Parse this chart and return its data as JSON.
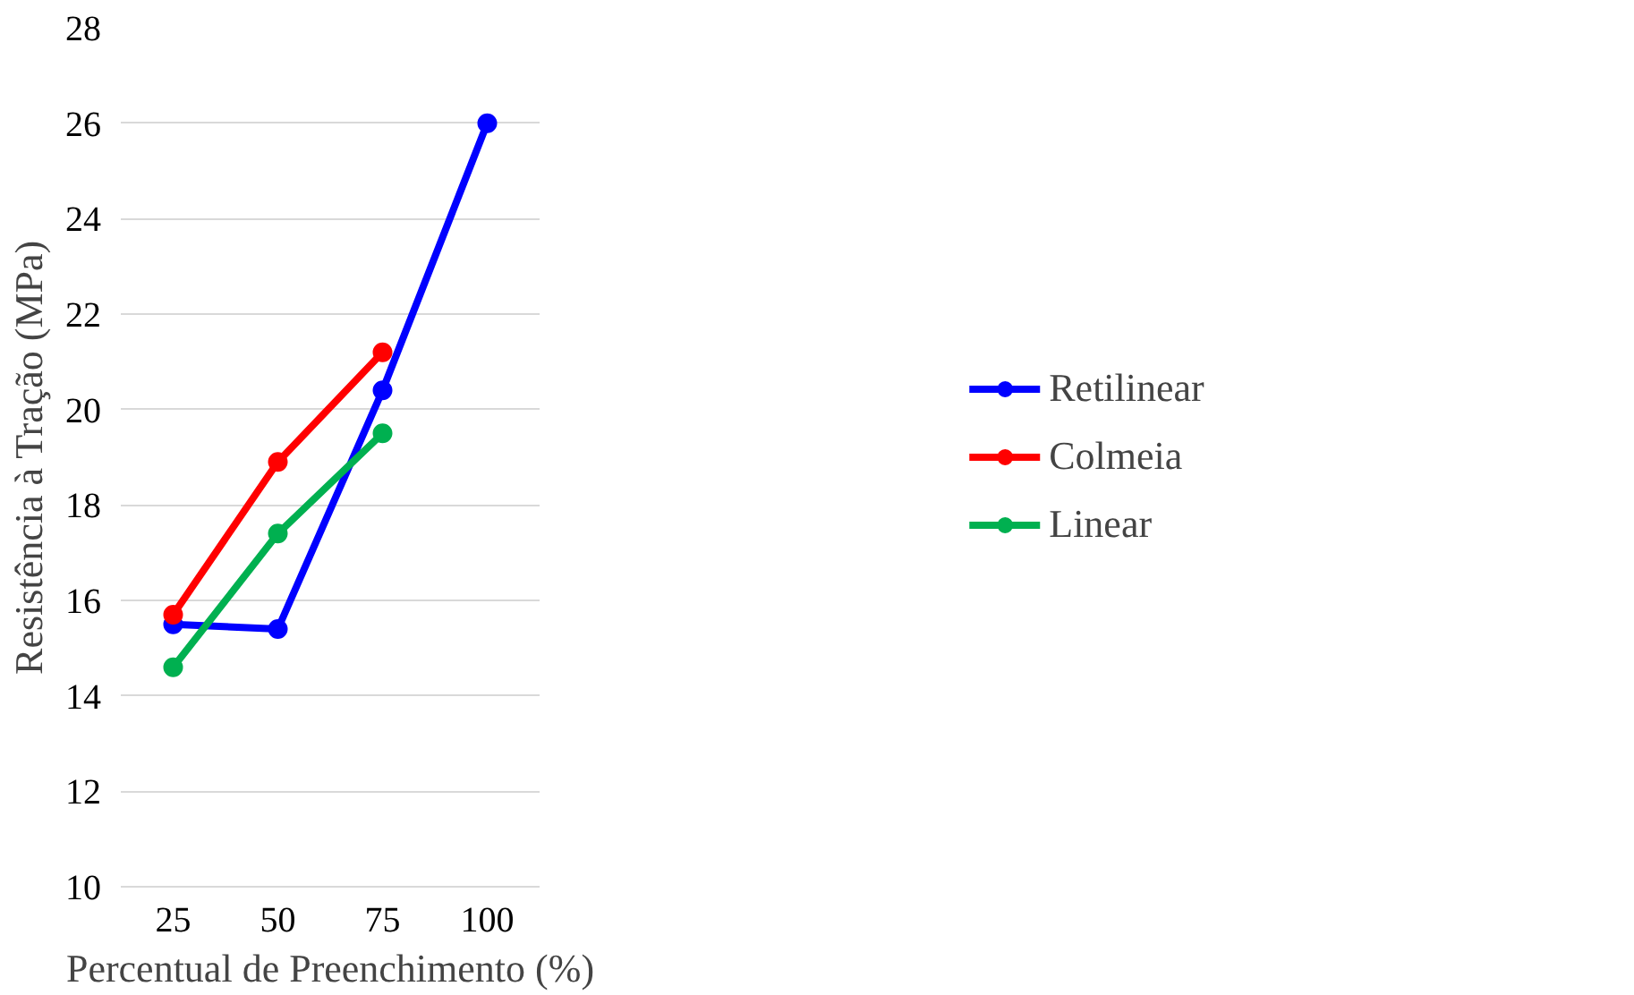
{
  "chart_data": {
    "type": "line",
    "xlabel": "Percentual de Preenchimento (%)",
    "ylabel": "Resistência à Tração (MPa)",
    "categories": [
      "25",
      "50",
      "75",
      "100"
    ],
    "series": [
      {
        "name": "Retilinear",
        "color": "#0000ff",
        "values": [
          15.5,
          15.4,
          20.4,
          26.0
        ]
      },
      {
        "name": "Colmeia",
        "color": "#ff0000",
        "values": [
          15.7,
          18.9,
          21.2,
          null
        ]
      },
      {
        "name": "Linear",
        "color": "#00b050",
        "values": [
          14.6,
          17.4,
          19.5,
          null
        ]
      }
    ],
    "ylim": [
      10,
      28
    ],
    "yticks": [
      10,
      12,
      14,
      16,
      18,
      20,
      22,
      24,
      26,
      28
    ],
    "grid": "y",
    "legend": "right",
    "marker": "circle",
    "line_style": "solid"
  }
}
